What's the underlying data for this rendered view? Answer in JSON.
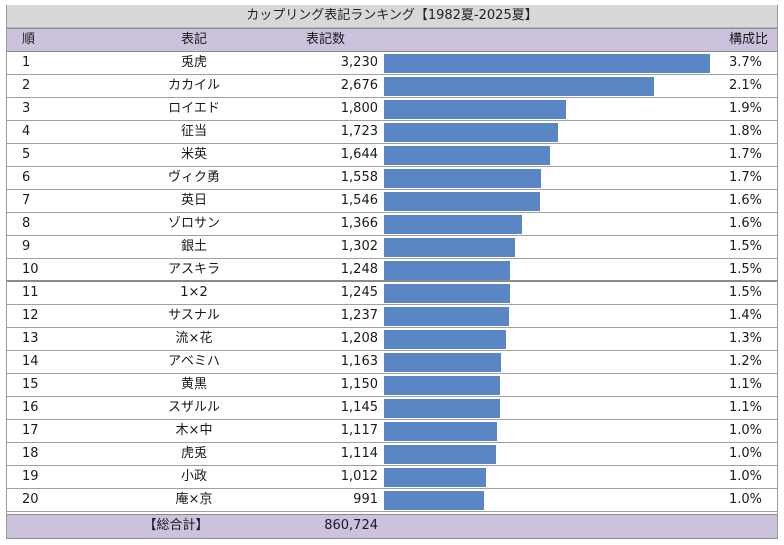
{
  "title": "カップリング表記ランキング【1982夏-2025夏】",
  "headers": {
    "rank": "順",
    "name": "表記",
    "count": "表記数",
    "ratio": "構成比"
  },
  "colors": {
    "bar": "#5a86c6",
    "header_bg": "#ccc2de",
    "title_bg": "#d8d8d8"
  },
  "chart_data": {
    "type": "bar",
    "categories": [
      "兎虎",
      "カカイル",
      "ロイエド",
      "征当",
      "米英",
      "ヴィク勇",
      "英日",
      "ゾロサン",
      "銀土",
      "アスキラ",
      "1×2",
      "サスナル",
      "流×花",
      "アベミハ",
      "黄黒",
      "スザルル",
      "木×中",
      "虎兎",
      "小政",
      "庵×京"
    ],
    "values": [
      3230,
      2676,
      1800,
      1723,
      1644,
      1558,
      1546,
      1366,
      1302,
      1248,
      1245,
      1237,
      1208,
      1163,
      1150,
      1145,
      1117,
      1114,
      1012,
      991
    ],
    "xlim": [
      0,
      3230
    ]
  },
  "rows": [
    {
      "rank": "1",
      "name": "兎虎",
      "count": "3,230",
      "ratio": "3.7%"
    },
    {
      "rank": "2",
      "name": "カカイル",
      "count": "2,676",
      "ratio": "2.1%"
    },
    {
      "rank": "3",
      "name": "ロイエド",
      "count": "1,800",
      "ratio": "1.9%"
    },
    {
      "rank": "4",
      "name": "征当",
      "count": "1,723",
      "ratio": "1.8%"
    },
    {
      "rank": "5",
      "name": "米英",
      "count": "1,644",
      "ratio": "1.7%"
    },
    {
      "rank": "6",
      "name": "ヴィク勇",
      "count": "1,558",
      "ratio": "1.7%"
    },
    {
      "rank": "7",
      "name": "英日",
      "count": "1,546",
      "ratio": "1.6%"
    },
    {
      "rank": "8",
      "name": "ゾロサン",
      "count": "1,366",
      "ratio": "1.6%"
    },
    {
      "rank": "9",
      "name": "銀土",
      "count": "1,302",
      "ratio": "1.5%"
    },
    {
      "rank": "10",
      "name": "アスキラ",
      "count": "1,248",
      "ratio": "1.5%"
    },
    {
      "rank": "11",
      "name": "1×2",
      "count": "1,245",
      "ratio": "1.5%"
    },
    {
      "rank": "12",
      "name": "サスナル",
      "count": "1,237",
      "ratio": "1.4%"
    },
    {
      "rank": "13",
      "name": "流×花",
      "count": "1,208",
      "ratio": "1.3%"
    },
    {
      "rank": "14",
      "name": "アベミハ",
      "count": "1,163",
      "ratio": "1.2%"
    },
    {
      "rank": "15",
      "name": "黄黒",
      "count": "1,150",
      "ratio": "1.1%"
    },
    {
      "rank": "16",
      "name": "スザルル",
      "count": "1,145",
      "ratio": "1.1%"
    },
    {
      "rank": "17",
      "name": "木×中",
      "count": "1,117",
      "ratio": "1.0%"
    },
    {
      "rank": "18",
      "name": "虎兎",
      "count": "1,114",
      "ratio": "1.0%"
    },
    {
      "rank": "19",
      "name": "小政",
      "count": "1,012",
      "ratio": "1.0%"
    },
    {
      "rank": "20",
      "name": "庵×京",
      "count": "991",
      "ratio": "1.0%"
    }
  ],
  "footer": {
    "label": "【総合計】",
    "total": "860,724"
  }
}
